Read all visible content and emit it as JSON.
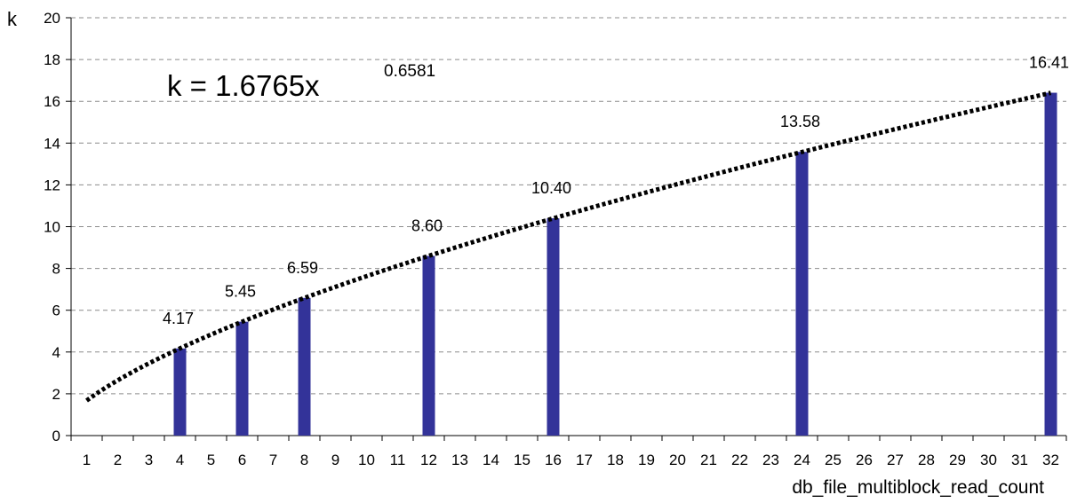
{
  "chart_data": {
    "type": "bar",
    "title": "",
    "xlabel": "db_file_multiblock_read_count",
    "ylabel": "k",
    "x_ticks": [
      1,
      2,
      3,
      4,
      5,
      6,
      7,
      8,
      9,
      10,
      11,
      12,
      13,
      14,
      15,
      16,
      17,
      18,
      19,
      20,
      21,
      22,
      23,
      24,
      25,
      26,
      27,
      28,
      29,
      30,
      31,
      32
    ],
    "ylim": [
      0,
      20
    ],
    "y_ticks": [
      0,
      2,
      4,
      6,
      8,
      10,
      12,
      14,
      16,
      18,
      20
    ],
    "grid": "horizontal-dashed",
    "bar_color": "#333399",
    "series": [
      {
        "x": [
          4,
          6,
          8,
          12,
          16,
          24,
          32
        ],
        "values": [
          4.17,
          5.45,
          6.59,
          8.6,
          10.4,
          13.58,
          16.41
        ],
        "data_labels": [
          "4.17",
          "5.45",
          "6.59",
          "8.60",
          "10.40",
          "13.58",
          "16.41"
        ]
      }
    ],
    "trendline": {
      "type": "power",
      "coefficient": 1.6765,
      "exponent": 0.6581,
      "style": "dotted",
      "color": "#000000",
      "x_range": [
        1,
        32
      ],
      "equation_base": "k = 1.6765x",
      "equation_exponent": "0.6581"
    }
  }
}
